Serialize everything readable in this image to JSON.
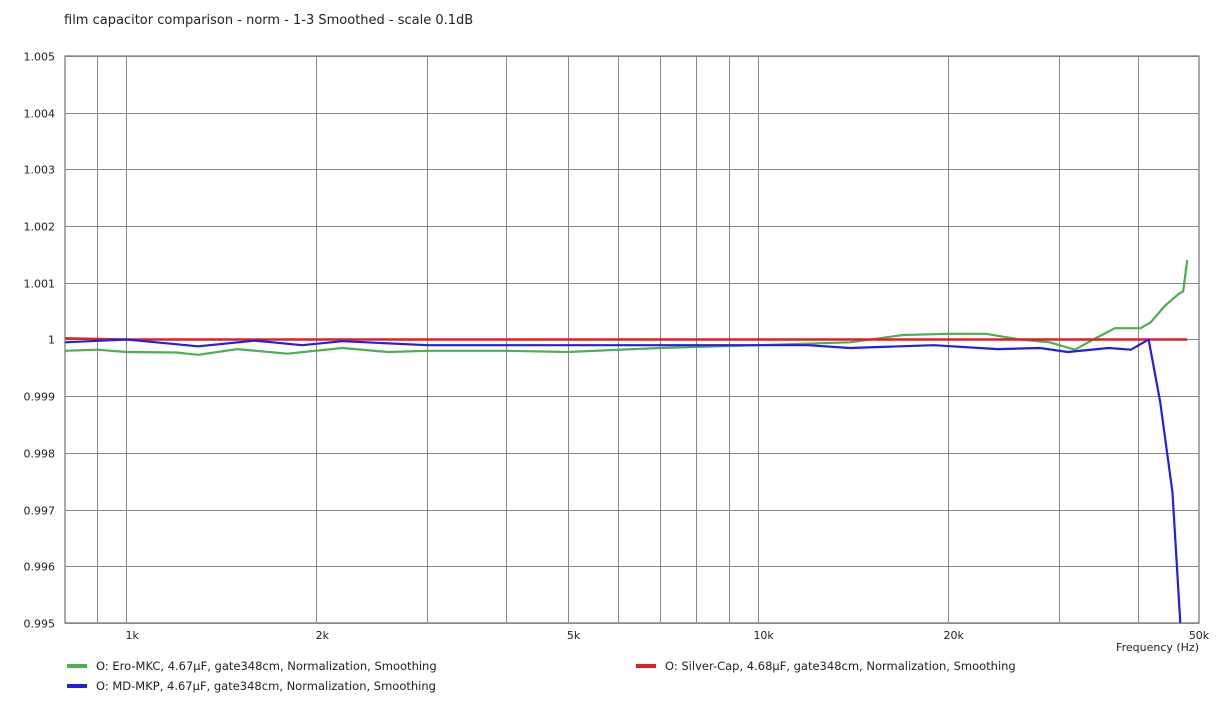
{
  "chart_data": {
    "type": "line",
    "title": "film capacitor comparison - norm - 1-3 Smoothed - scale 0.1dB",
    "xlabel": "Frequency  (Hz)",
    "ylabel": "",
    "x_scale": "log",
    "xlim": [
      800,
      50000
    ],
    "ylim": [
      0.995,
      1.005
    ],
    "grid": true,
    "legend_position": "bottom",
    "x_ticks": [
      {
        "v": 1000,
        "label": "1k"
      },
      {
        "v": 2000,
        "label": "2k"
      },
      {
        "v": 5000,
        "label": "5k"
      },
      {
        "v": 10000,
        "label": "10k"
      },
      {
        "v": 20000,
        "label": "20k"
      },
      {
        "v": 50000,
        "label": "50k"
      }
    ],
    "x_gridlines": [
      900,
      1000,
      2000,
      3000,
      4000,
      5000,
      6000,
      7000,
      8000,
      9000,
      10000,
      20000,
      30000,
      40000
    ],
    "y_ticks": [
      "0.995",
      "0.996",
      "0.997",
      "0.998",
      "0.999",
      "1",
      "1.001",
      "1.002",
      "1.003",
      "1.004",
      "1.005"
    ],
    "series": [
      {
        "name": "O: Ero-MKC, 4.67µF, gate348cm, Normalization, Smoothing",
        "color": "#4caf50",
        "points": [
          [
            800,
            0.9998
          ],
          [
            900,
            0.99982
          ],
          [
            1000,
            0.99978
          ],
          [
            1200,
            0.99977
          ],
          [
            1300,
            0.99973
          ],
          [
            1500,
            0.99983
          ],
          [
            1800,
            0.99975
          ],
          [
            2200,
            0.99985
          ],
          [
            2600,
            0.99978
          ],
          [
            3000,
            0.9998
          ],
          [
            4000,
            0.9998
          ],
          [
            5000,
            0.99978
          ],
          [
            7000,
            0.99985
          ],
          [
            10000,
            0.9999
          ],
          [
            14000,
            0.99995
          ],
          [
            17000,
            1.00008
          ],
          [
            20000,
            1.0001
          ],
          [
            23000,
            1.0001
          ],
          [
            26000,
            1.0
          ],
          [
            29000,
            0.99995
          ],
          [
            31800,
            0.99982
          ],
          [
            34000,
            1.0
          ],
          [
            36800,
            1.0002
          ],
          [
            40400,
            1.0002
          ],
          [
            41900,
            1.0003
          ],
          [
            44200,
            1.0006
          ],
          [
            46400,
            1.0008
          ],
          [
            47200,
            1.00085
          ],
          [
            47900,
            1.0014
          ]
        ]
      },
      {
        "name": "O: Silver-Cap, 4.68µF, gate348cm, Normalization, Smoothing",
        "color": "#e02020",
        "points": [
          [
            800,
            1.00002
          ],
          [
            1000,
            1.0
          ],
          [
            5000,
            1.0
          ],
          [
            10000,
            1.0
          ],
          [
            20000,
            1.0
          ],
          [
            47900,
            1.0
          ]
        ]
      },
      {
        "name": "O: MD-MKP, 4.67µF, gate348cm, Normalization, Smoothing",
        "color": "#2020e0",
        "points": [
          [
            800,
            0.99995
          ],
          [
            1000,
            1.0
          ],
          [
            1300,
            0.99988
          ],
          [
            1600,
            0.99998
          ],
          [
            1900,
            0.9999
          ],
          [
            2200,
            0.99997
          ],
          [
            3000,
            0.9999
          ],
          [
            5000,
            0.9999
          ],
          [
            8000,
            0.9999
          ],
          [
            12000,
            0.9999
          ],
          [
            14000,
            0.99985
          ],
          [
            19000,
            0.9999
          ],
          [
            24000,
            0.99983
          ],
          [
            28000,
            0.99985
          ],
          [
            31000,
            0.99978
          ],
          [
            36000,
            0.99985
          ],
          [
            39000,
            0.99982
          ],
          [
            41600,
            1.0
          ],
          [
            43400,
            0.9989
          ],
          [
            45400,
            0.9973
          ],
          [
            46700,
            0.995
          ]
        ]
      }
    ]
  }
}
